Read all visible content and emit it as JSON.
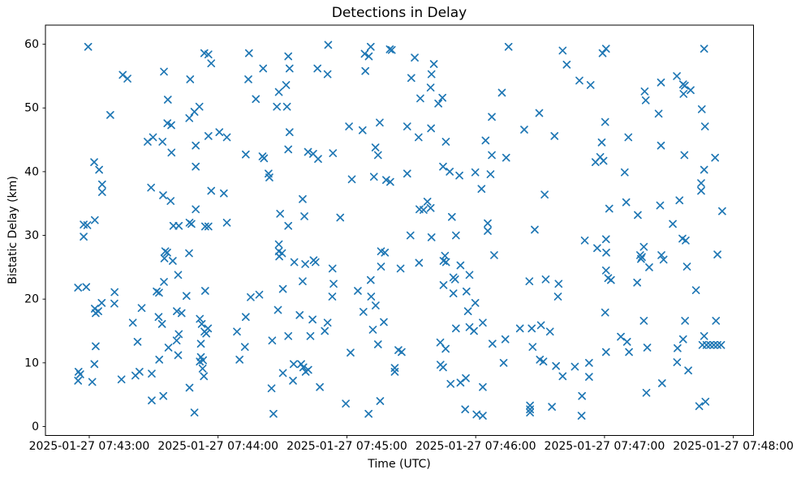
{
  "title": "Detections in Delay",
  "xlabel": "Time (UTC)",
  "ylabel": "Bistatic Delay (km)",
  "chart_data": {
    "type": "scatter",
    "marker": "x",
    "marker_color": "#1f77b4",
    "x_unit": "seconds since 2025-01-27 07:43:00 UTC",
    "x_tick_seconds": [
      0,
      60,
      120,
      180,
      240,
      300
    ],
    "x_tick_labels": [
      "2025-01-27 07:43:00",
      "2025-01-27 07:44:00",
      "2025-01-27 07:45:00",
      "2025-01-27 07:46:00",
      "2025-01-27 07:47:00",
      "2025-01-27 07:48:00"
    ],
    "y_ticks": [
      0,
      10,
      20,
      30,
      40,
      50,
      60
    ],
    "xlim_seconds": [
      -20.4,
      309.4
    ],
    "ylim": [
      -1.4,
      63.0
    ],
    "grid": false,
    "legend": null,
    "points": [
      [
        -0.5,
        59.6
      ],
      [
        53.6,
        58.6
      ],
      [
        55.5,
        58.4
      ],
      [
        56.8,
        57.0
      ],
      [
        34.8,
        55.7
      ],
      [
        15.6,
        55.2
      ],
      [
        17.8,
        54.6
      ],
      [
        47.0,
        54.5
      ],
      [
        36.6,
        51.3
      ],
      [
        46.6,
        48.4
      ],
      [
        49.0,
        49.4
      ],
      [
        51.3,
        50.2
      ],
      [
        9.8,
        48.9
      ],
      [
        36.4,
        47.6
      ],
      [
        38.2,
        47.3
      ],
      [
        27.2,
        44.7
      ],
      [
        29.7,
        45.4
      ],
      [
        34.1,
        44.7
      ],
      [
        38.3,
        43.0
      ],
      [
        49.6,
        44.1
      ],
      [
        55.5,
        45.6
      ],
      [
        60.6,
        46.2
      ],
      [
        64.1,
        45.4
      ],
      [
        111.3,
        59.9
      ],
      [
        74.4,
        58.6
      ],
      [
        131.1,
        59.6
      ],
      [
        128.3,
        58.5
      ],
      [
        130.2,
        58.1
      ],
      [
        140.0,
        59.2
      ],
      [
        140.9,
        59.1
      ],
      [
        151.6,
        57.9
      ],
      [
        92.7,
        58.1
      ],
      [
        81.0,
        56.2
      ],
      [
        93.3,
        56.2
      ],
      [
        106.3,
        56.2
      ],
      [
        111.0,
        55.3
      ],
      [
        128.6,
        55.8
      ],
      [
        74.1,
        54.5
      ],
      [
        150.0,
        54.7
      ],
      [
        91.7,
        53.6
      ],
      [
        88.3,
        52.5
      ],
      [
        77.6,
        51.4
      ],
      [
        87.4,
        50.2
      ],
      [
        92.1,
        50.2
      ],
      [
        121.0,
        47.1
      ],
      [
        127.3,
        46.5
      ],
      [
        135.3,
        47.7
      ],
      [
        148.1,
        47.1
      ],
      [
        93.3,
        46.2
      ],
      [
        92.7,
        43.5
      ],
      [
        101.9,
        43.1
      ],
      [
        104.3,
        42.8
      ],
      [
        106.6,
        42.0
      ],
      [
        113.5,
        42.9
      ],
      [
        133.3,
        43.8
      ],
      [
        134.5,
        42.6
      ],
      [
        72.9,
        42.7
      ],
      [
        80.7,
        42.4
      ],
      [
        81.4,
        42.1
      ],
      [
        195.3,
        59.6
      ],
      [
        220.5,
        59.0
      ],
      [
        239.1,
        58.6
      ],
      [
        240.7,
        59.3
      ],
      [
        222.4,
        56.8
      ],
      [
        160.5,
        56.9
      ],
      [
        159.4,
        55.3
      ],
      [
        228.3,
        54.3
      ],
      [
        233.5,
        53.6
      ],
      [
        159.0,
        53.2
      ],
      [
        164.5,
        51.6
      ],
      [
        154.2,
        51.5
      ],
      [
        162.6,
        50.7
      ],
      [
        192.2,
        52.4
      ],
      [
        187.5,
        48.6
      ],
      [
        209.6,
        49.2
      ],
      [
        159.2,
        46.8
      ],
      [
        153.4,
        45.4
      ],
      [
        166.1,
        44.7
      ],
      [
        184.6,
        44.9
      ],
      [
        202.6,
        46.6
      ],
      [
        216.7,
        45.6
      ],
      [
        238.7,
        44.6
      ],
      [
        187.5,
        42.6
      ],
      [
        194.2,
        42.2
      ],
      [
        235.8,
        41.5
      ],
      [
        238.0,
        42.3
      ],
      [
        239.5,
        41.7
      ],
      [
        286.4,
        59.3
      ],
      [
        266.3,
        54.0
      ],
      [
        273.7,
        55.0
      ],
      [
        276.6,
        53.7
      ],
      [
        277.4,
        53.5
      ],
      [
        280.1,
        52.8
      ],
      [
        276.8,
        52.2
      ],
      [
        258.7,
        52.6
      ],
      [
        259.2,
        51.2
      ],
      [
        265.2,
        49.1
      ],
      [
        285.3,
        49.8
      ],
      [
        286.8,
        47.1
      ],
      [
        240.3,
        47.8
      ],
      [
        251.1,
        45.4
      ],
      [
        266.3,
        44.1
      ],
      [
        277.2,
        42.6
      ],
      [
        291.5,
        42.2
      ],
      [
        2.3,
        41.5
      ],
      [
        4.6,
        40.3
      ],
      [
        49.6,
        40.8
      ],
      [
        6.0,
        38.0
      ],
      [
        6.0,
        36.8
      ],
      [
        28.8,
        37.5
      ],
      [
        34.4,
        36.3
      ],
      [
        37.9,
        35.4
      ],
      [
        56.8,
        37.0
      ],
      [
        62.7,
        36.6
      ],
      [
        49.6,
        34.1
      ],
      [
        2.6,
        32.4
      ],
      [
        -2.6,
        31.7
      ],
      [
        -0.9,
        31.6
      ],
      [
        -2.6,
        29.8
      ],
      [
        39.2,
        31.5
      ],
      [
        41.7,
        31.5
      ],
      [
        46.7,
        32.0
      ],
      [
        47.6,
        31.8
      ],
      [
        54.0,
        31.4
      ],
      [
        55.5,
        31.4
      ],
      [
        64.1,
        32.0
      ],
      [
        35.4,
        27.5
      ],
      [
        36.3,
        27.3
      ],
      [
        35.0,
        26.4
      ],
      [
        38.9,
        26.0
      ],
      [
        46.5,
        27.2
      ],
      [
        41.4,
        23.8
      ],
      [
        34.8,
        22.7
      ],
      [
        -5.2,
        21.8
      ],
      [
        -1.4,
        21.9
      ],
      [
        11.8,
        21.1
      ],
      [
        31.4,
        21.2
      ],
      [
        32.5,
        21.0
      ],
      [
        45.3,
        20.5
      ],
      [
        54.0,
        21.3
      ],
      [
        83.5,
        39.7
      ],
      [
        83.9,
        39.1
      ],
      [
        122.3,
        38.8
      ],
      [
        132.6,
        39.2
      ],
      [
        138.3,
        38.7
      ],
      [
        140.2,
        38.4
      ],
      [
        148.1,
        39.7
      ],
      [
        99.4,
        35.7
      ],
      [
        88.9,
        33.4
      ],
      [
        100.2,
        33.0
      ],
      [
        116.9,
        32.8
      ],
      [
        92.7,
        31.5
      ],
      [
        149.6,
        30.0
      ],
      [
        88.3,
        28.6
      ],
      [
        88.3,
        27.5
      ],
      [
        89.8,
        27.2
      ],
      [
        88.5,
        26.7
      ],
      [
        95.5,
        25.8
      ],
      [
        100.6,
        25.5
      ],
      [
        104.5,
        26.1
      ],
      [
        105.4,
        25.8
      ],
      [
        113.3,
        24.8
      ],
      [
        135.9,
        27.5
      ],
      [
        137.7,
        27.3
      ],
      [
        135.9,
        25.1
      ],
      [
        145.0,
        24.8
      ],
      [
        99.4,
        22.8
      ],
      [
        113.8,
        22.4
      ],
      [
        90.2,
        21.6
      ],
      [
        131.1,
        23.0
      ],
      [
        79.2,
        20.7
      ],
      [
        125.1,
        21.3
      ],
      [
        75.2,
        20.3
      ],
      [
        113.2,
        20.4
      ],
      [
        131.3,
        20.4
      ],
      [
        164.8,
        40.8
      ],
      [
        167.9,
        40.0
      ],
      [
        172.4,
        39.4
      ],
      [
        179.8,
        39.9
      ],
      [
        186.9,
        39.6
      ],
      [
        182.7,
        37.3
      ],
      [
        212.1,
        36.4
      ],
      [
        157.5,
        35.3
      ],
      [
        159.0,
        34.3
      ],
      [
        153.8,
        34.1
      ],
      [
        155.7,
        34.0
      ],
      [
        168.9,
        32.9
      ],
      [
        185.6,
        31.9
      ],
      [
        185.6,
        30.7
      ],
      [
        207.5,
        30.9
      ],
      [
        159.4,
        29.7
      ],
      [
        170.8,
        30.0
      ],
      [
        230.8,
        29.2
      ],
      [
        236.6,
        28.0
      ],
      [
        188.6,
        26.9
      ],
      [
        165.7,
        26.8
      ],
      [
        165.0,
        26.0
      ],
      [
        166.2,
        25.8
      ],
      [
        153.6,
        25.7
      ],
      [
        172.9,
        25.3
      ],
      [
        169.6,
        23.4
      ],
      [
        170.4,
        23.1
      ],
      [
        177.1,
        23.8
      ],
      [
        165.0,
        22.2
      ],
      [
        169.6,
        20.9
      ],
      [
        175.7,
        21.2
      ],
      [
        205.0,
        22.8
      ],
      [
        212.6,
        23.1
      ],
      [
        218.6,
        22.4
      ],
      [
        218.3,
        20.4
      ],
      [
        249.4,
        39.9
      ],
      [
        286.4,
        40.3
      ],
      [
        285.0,
        38.2
      ],
      [
        285.0,
        37.0
      ],
      [
        274.9,
        35.5
      ],
      [
        250.1,
        35.2
      ],
      [
        242.2,
        34.2
      ],
      [
        265.9,
        34.7
      ],
      [
        255.5,
        33.2
      ],
      [
        294.8,
        33.8
      ],
      [
        271.8,
        31.8
      ],
      [
        276.3,
        29.5
      ],
      [
        277.8,
        29.2
      ],
      [
        240.7,
        29.4
      ],
      [
        240.8,
        27.3
      ],
      [
        258.3,
        28.2
      ],
      [
        256.6,
        26.9
      ],
      [
        257.4,
        26.6
      ],
      [
        257.0,
        26.3
      ],
      [
        266.5,
        26.9
      ],
      [
        267.5,
        26.2
      ],
      [
        260.8,
        25.0
      ],
      [
        278.4,
        25.1
      ],
      [
        292.6,
        27.0
      ],
      [
        240.7,
        24.5
      ],
      [
        241.7,
        23.3
      ],
      [
        243.0,
        23.0
      ],
      [
        255.2,
        22.6
      ],
      [
        282.6,
        21.4
      ],
      [
        5.8,
        19.4
      ],
      [
        11.7,
        19.3
      ],
      [
        2.6,
        18.5
      ],
      [
        4.2,
        18.1
      ],
      [
        3.0,
        17.8
      ],
      [
        24.4,
        18.6
      ],
      [
        20.3,
        16.3
      ],
      [
        32.3,
        17.2
      ],
      [
        33.9,
        16.1
      ],
      [
        40.8,
        18.1
      ],
      [
        43.0,
        17.8
      ],
      [
        51.5,
        16.9
      ],
      [
        52.4,
        16.1
      ],
      [
        53.7,
        14.9
      ],
      [
        54.5,
        14.6
      ],
      [
        55.3,
        15.4
      ],
      [
        3.0,
        12.6
      ],
      [
        22.5,
        13.3
      ],
      [
        36.9,
        12.4
      ],
      [
        40.7,
        13.5
      ],
      [
        41.7,
        14.5
      ],
      [
        52.0,
        13.0
      ],
      [
        32.6,
        10.5
      ],
      [
        41.4,
        11.2
      ],
      [
        52.0,
        10.9
      ],
      [
        53.0,
        10.4
      ],
      [
        51.5,
        10.2
      ],
      [
        52.8,
        9.1
      ],
      [
        53.4,
        7.9
      ],
      [
        2.4,
        9.8
      ],
      [
        -5.0,
        8.6
      ],
      [
        -4.2,
        8.2
      ],
      [
        -5.2,
        7.2
      ],
      [
        1.4,
        7.0
      ],
      [
        15.0,
        7.4
      ],
      [
        21.5,
        8.0
      ],
      [
        23.4,
        8.6
      ],
      [
        29.1,
        8.3
      ],
      [
        46.7,
        6.1
      ],
      [
        34.5,
        4.8
      ],
      [
        29.1,
        4.1
      ],
      [
        49.0,
        2.2
      ],
      [
        87.9,
        18.3
      ],
      [
        72.9,
        17.2
      ],
      [
        98.0,
        17.5
      ],
      [
        104.0,
        16.8
      ],
      [
        111.0,
        16.3
      ],
      [
        68.8,
        14.9
      ],
      [
        109.7,
        15.0
      ],
      [
        127.7,
        18.0
      ],
      [
        133.4,
        19.0
      ],
      [
        132.1,
        15.2
      ],
      [
        137.2,
        16.4
      ],
      [
        85.2,
        13.5
      ],
      [
        92.7,
        14.2
      ],
      [
        103.0,
        14.2
      ],
      [
        72.5,
        12.5
      ],
      [
        70.0,
        10.5
      ],
      [
        121.7,
        11.6
      ],
      [
        134.5,
        12.9
      ],
      [
        144.0,
        12.0
      ],
      [
        145.5,
        11.7
      ],
      [
        142.3,
        9.2
      ],
      [
        142.3,
        8.6
      ],
      [
        95.2,
        9.8
      ],
      [
        98.7,
        9.8
      ],
      [
        99.7,
        9.3
      ],
      [
        102.0,
        8.9
      ],
      [
        100.8,
        8.6
      ],
      [
        90.2,
        8.4
      ],
      [
        94.9,
        7.2
      ],
      [
        84.9,
        6.0
      ],
      [
        107.4,
        6.2
      ],
      [
        119.5,
        3.6
      ],
      [
        135.5,
        4.0
      ],
      [
        85.8,
        2.0
      ],
      [
        130.1,
        2.0
      ],
      [
        179.8,
        19.4
      ],
      [
        176.4,
        18.1
      ],
      [
        170.8,
        15.4
      ],
      [
        177.1,
        15.6
      ],
      [
        179.2,
        15.0
      ],
      [
        183.3,
        16.3
      ],
      [
        200.6,
        15.4
      ],
      [
        206.1,
        15.4
      ],
      [
        210.4,
        15.9
      ],
      [
        214.6,
        14.9
      ],
      [
        163.5,
        13.2
      ],
      [
        166.0,
        12.2
      ],
      [
        187.8,
        13.0
      ],
      [
        193.8,
        13.7
      ],
      [
        206.5,
        12.5
      ],
      [
        240.3,
        17.9
      ],
      [
        240.7,
        11.7
      ],
      [
        209.9,
        10.5
      ],
      [
        211.5,
        10.2
      ],
      [
        193.0,
        10.0
      ],
      [
        217.4,
        9.5
      ],
      [
        226.2,
        9.4
      ],
      [
        232.8,
        10.0
      ],
      [
        220.5,
        7.9
      ],
      [
        232.8,
        7.8
      ],
      [
        163.6,
        9.7
      ],
      [
        164.8,
        9.3
      ],
      [
        168.3,
        6.7
      ],
      [
        172.9,
        6.9
      ],
      [
        175.4,
        7.6
      ],
      [
        183.3,
        6.2
      ],
      [
        229.5,
        4.8
      ],
      [
        175.1,
        2.7
      ],
      [
        180.4,
        1.9
      ],
      [
        183.3,
        1.7
      ],
      [
        205.3,
        3.3
      ],
      [
        205.3,
        2.7
      ],
      [
        205.3,
        2.2
      ],
      [
        215.5,
        3.1
      ],
      [
        229.3,
        1.7
      ],
      [
        258.3,
        16.6
      ],
      [
        277.5,
        16.6
      ],
      [
        291.9,
        16.6
      ],
      [
        247.6,
        14.1
      ],
      [
        250.5,
        13.3
      ],
      [
        251.4,
        11.7
      ],
      [
        259.9,
        12.4
      ],
      [
        274.0,
        12.3
      ],
      [
        276.6,
        13.7
      ],
      [
        286.4,
        14.2
      ],
      [
        285.6,
        12.8
      ],
      [
        287.5,
        12.8
      ],
      [
        289.2,
        12.8
      ],
      [
        290.9,
        12.8
      ],
      [
        292.6,
        12.8
      ],
      [
        294.3,
        12.8
      ],
      [
        273.8,
        10.1
      ],
      [
        279.0,
        8.8
      ],
      [
        266.8,
        6.8
      ],
      [
        259.5,
        5.3
      ],
      [
        284.1,
        3.2
      ],
      [
        287.0,
        3.9
      ]
    ]
  }
}
